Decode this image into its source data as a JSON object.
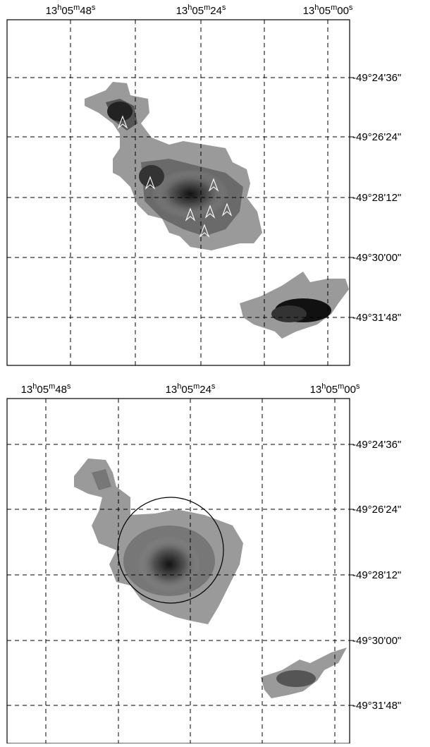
{
  "panels": [
    {
      "ra_labels": [
        "13h05m48s",
        "13h05m24s",
        "13h05m00s"
      ],
      "dec_labels": [
        "-49°24'36\"",
        "-49°26'24\"",
        "-49°28'12\"",
        "-49°30'00\"",
        "-49°31'48\""
      ]
    },
    {
      "ra_labels": [
        "13h05m48s",
        "13h05m24s",
        "13h05m00s"
      ],
      "dec_labels": [
        "-49°24'36\"",
        "-49°26'24\"",
        "-49°28'12\"",
        "-49°30'00\"",
        "-49°31'48\""
      ]
    }
  ]
}
